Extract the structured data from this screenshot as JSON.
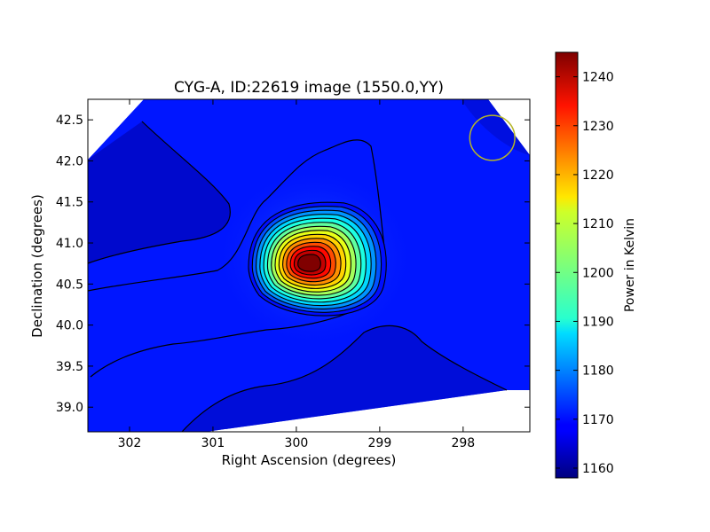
{
  "chart_data": {
    "type": "heatmap",
    "title": "CYG-A, ID:22619 image (1550.0,YY)",
    "xlabel": "Right Ascension (degrees)",
    "ylabel": "Declination (degrees)",
    "xlim": [
      302.5,
      297.2
    ],
    "ylim": [
      38.7,
      42.75
    ],
    "x_ticks": [
      302,
      301,
      300,
      299,
      298
    ],
    "x_tick_labels": [
      "302",
      "301",
      "300",
      "299",
      "298"
    ],
    "y_ticks": [
      39.0,
      39.5,
      40.0,
      40.5,
      41.0,
      41.5,
      42.0,
      42.5
    ],
    "y_tick_labels": [
      "39.0",
      "39.5",
      "40.0",
      "40.5",
      "41.0",
      "41.5",
      "42.0",
      "42.5"
    ],
    "peak": {
      "ra": 299.85,
      "dec": 40.75,
      "value": 1245
    },
    "background_level": 1170,
    "colorbar": {
      "label": "Power in Kelvin",
      "range": [
        1158,
        1245
      ],
      "ticks": [
        1160,
        1170,
        1180,
        1190,
        1200,
        1210,
        1220,
        1230,
        1240
      ],
      "tick_labels": [
        "1160",
        "1170",
        "1180",
        "1190",
        "1200",
        "1210",
        "1220",
        "1230",
        "1240"
      ],
      "colormap": "jet"
    },
    "beam_circle": {
      "ra": 297.65,
      "dec": 42.28,
      "radius_deg": 0.37,
      "color": "#b5b529"
    },
    "grid": false
  }
}
